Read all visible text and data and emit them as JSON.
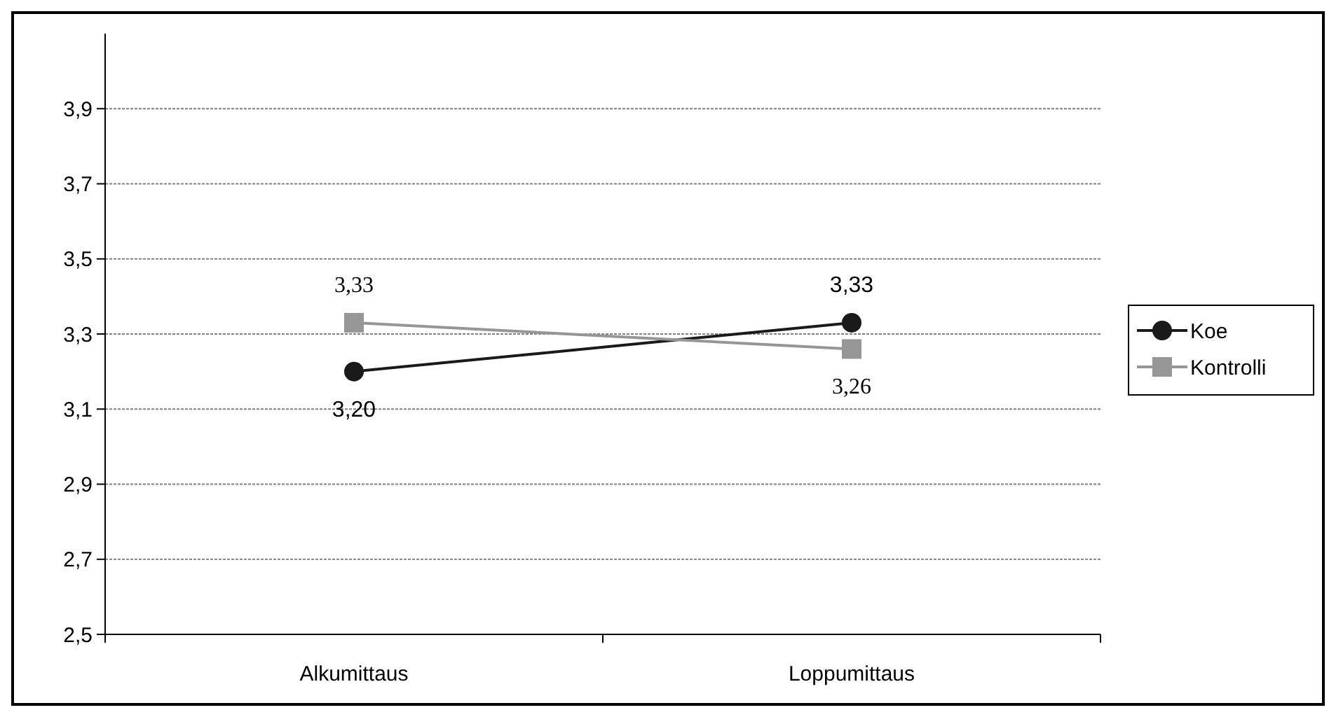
{
  "chart_data": {
    "type": "line",
    "categories": [
      "Alkumittaus",
      "Loppumittaus"
    ],
    "series": [
      {
        "name": "Koe",
        "color": "#1a1a1a",
        "values": [
          3.2,
          3.33
        ],
        "marker": "circle",
        "value_labels": [
          "3,20",
          "3,33"
        ]
      },
      {
        "name": "Kontrolli",
        "color": "#969696",
        "values": [
          3.33,
          3.26
        ],
        "marker": "square",
        "value_labels": [
          "3,33",
          "3,26"
        ]
      }
    ],
    "ylim": [
      2.5,
      4.1
    ],
    "yticks": [
      {
        "value": 2.5,
        "label": "2,5"
      },
      {
        "value": 2.7,
        "label": "2,7"
      },
      {
        "value": 2.9,
        "label": "2,9"
      },
      {
        "value": 3.1,
        "label": "3,1"
      },
      {
        "value": 3.3,
        "label": "3,3"
      },
      {
        "value": 3.5,
        "label": "3,5"
      },
      {
        "value": 3.7,
        "label": "3,7"
      },
      {
        "value": 3.9,
        "label": "3,9"
      }
    ],
    "grid": "y",
    "legend": "right",
    "line_style": "solid"
  }
}
